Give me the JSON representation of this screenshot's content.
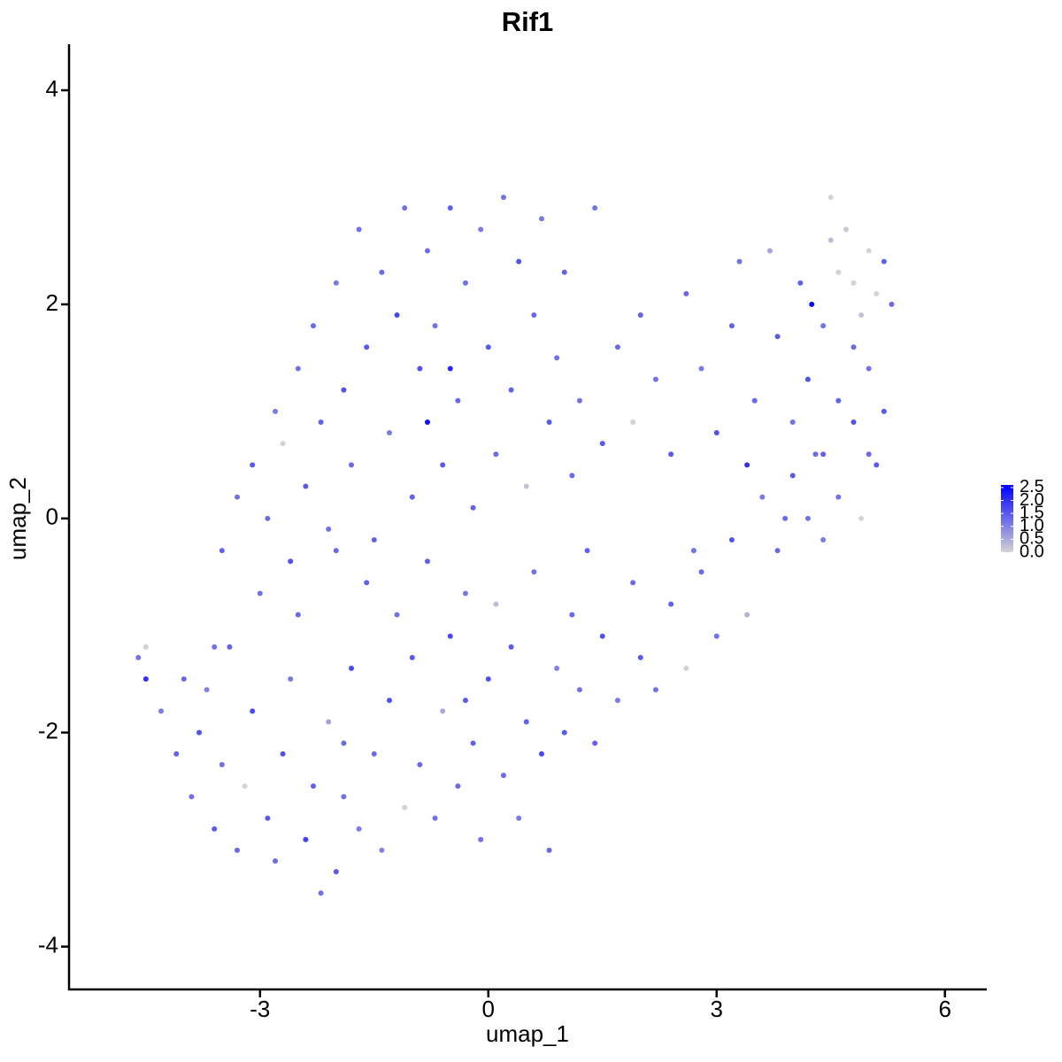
{
  "chart_data": {
    "type": "scatter",
    "title": "Rif1",
    "x_label": "umap_1",
    "y_label": "umap_2",
    "xlim": [
      -5.51,
      6.55
    ],
    "ylim": [
      -4.4,
      4.43
    ],
    "xticks": [
      -3,
      0,
      3,
      6
    ],
    "yticks": [
      -4,
      -2,
      0,
      2,
      4
    ],
    "low_color": "#d3d3d3",
    "high_color": "#0000ff",
    "clim": [
      0,
      2.6
    ],
    "cticks": [
      {
        "value": 0,
        "label": "0.0"
      },
      {
        "value": 0.5,
        "label": "0.5"
      },
      {
        "value": 1,
        "label": "1.0"
      },
      {
        "value": 1.5,
        "label": "1.5"
      },
      {
        "value": 2,
        "label": "2.0"
      },
      {
        "value": 2.5,
        "label": "2.5"
      }
    ],
    "x": [
      -4.6,
      -4.5,
      -4.5,
      -4.3,
      -4.1,
      -4.0,
      -3.9,
      -3.8,
      -3.7,
      -3.6,
      -3.5,
      -3.4,
      -3.3,
      -3.2,
      -3.1,
      -3.0,
      -2.9,
      -2.8,
      -2.7,
      -2.6,
      -2.5,
      -2.4,
      -2.3,
      -2.2,
      -2.1,
      -2.0,
      -2.0,
      -1.9,
      -1.8,
      -1.7,
      -1.6,
      -1.5,
      -1.4,
      -1.3,
      -1.2,
      -1.1,
      -1.0,
      -0.9,
      -0.8,
      -0.7,
      -0.6,
      -0.5,
      -0.4,
      -0.3,
      -0.2,
      -0.1,
      0.0,
      0.1,
      0.2,
      0.3,
      0.4,
      0.5,
      0.6,
      0.7,
      0.8,
      0.9,
      1.0,
      1.1,
      1.2,
      1.4,
      1.5,
      1.7,
      1.9,
      2.0,
      2.2,
      2.4,
      2.6,
      2.8,
      3.0,
      3.2,
      3.4,
      3.6,
      3.8,
      4.0,
      4.2,
      4.4,
      4.6,
      4.8,
      5.0,
      5.2,
      -3.5,
      -3.3,
      -3.1,
      -2.9,
      -2.8,
      -2.7,
      -2.6,
      -2.5,
      -2.4,
      -2.3,
      -2.2,
      -2.1,
      -2.0,
      -1.9,
      -1.8,
      -1.7,
      -1.6,
      -1.5,
      -1.4,
      -1.3,
      -1.2,
      -1.1,
      -1.0,
      -0.9,
      -0.8,
      -0.8,
      -0.7,
      -0.6,
      -0.5,
      -0.5,
      -0.4,
      -0.3,
      -0.2,
      -0.1,
      0.0,
      0.1,
      0.2,
      0.3,
      0.4,
      0.5,
      0.6,
      0.7,
      0.8,
      0.9,
      1.0,
      1.1,
      1.2,
      1.4,
      1.5,
      1.7,
      1.9,
      2.0,
      2.2,
      2.4,
      2.6,
      2.8,
      3.0,
      3.2,
      3.3,
      3.4,
      3.5,
      3.7,
      3.8,
      4.0,
      4.1,
      4.2,
      4.25,
      4.3,
      4.4,
      4.5,
      4.5,
      4.6,
      4.6,
      4.7,
      4.8,
      4.8,
      4.9,
      5.0,
      5.0,
      5.1,
      5.2,
      5.3,
      5.1,
      4.9,
      4.4,
      3.9,
      2.7,
      1.3,
      -0.3,
      -1.9,
      -3.6
    ],
    "y": [
      -1.3,
      -1.2,
      -1.5,
      -1.8,
      -2.2,
      -1.5,
      -2.6,
      -2.0,
      -1.6,
      -2.9,
      -2.3,
      -1.2,
      -3.1,
      -2.5,
      -1.8,
      -0.7,
      -2.8,
      -3.2,
      -2.2,
      -1.5,
      -0.9,
      -3.0,
      -2.5,
      -3.5,
      -1.9,
      -3.3,
      -0.3,
      -2.6,
      -1.4,
      -2.9,
      -0.6,
      -2.2,
      -3.1,
      -1.7,
      -0.9,
      -2.7,
      -1.3,
      -2.3,
      -0.4,
      -2.8,
      -1.8,
      -1.1,
      -2.5,
      -0.7,
      -2.1,
      -3.0,
      -1.5,
      -0.8,
      -2.4,
      -1.2,
      -2.8,
      -1.9,
      -0.5,
      -2.2,
      -3.1,
      -1.4,
      -2.0,
      -0.9,
      -1.6,
      -2.1,
      -1.1,
      -1.7,
      -0.6,
      -1.3,
      -1.6,
      -0.8,
      -1.4,
      -0.5,
      -1.1,
      -0.2,
      -0.9,
      0.2,
      -0.3,
      0.4,
      0.0,
      0.6,
      0.2,
      0.9,
      0.6,
      1.0,
      -0.3,
      0.2,
      0.5,
      0.0,
      1.0,
      0.7,
      -0.4,
      1.4,
      0.3,
      1.8,
      0.9,
      -0.1,
      2.2,
      1.2,
      0.5,
      2.7,
      1.6,
      -0.2,
      2.3,
      0.8,
      1.9,
      2.9,
      0.2,
      1.4,
      2.5,
      0.9,
      1.8,
      0.5,
      2.9,
      1.4,
      1.1,
      2.2,
      0.1,
      2.7,
      1.6,
      0.6,
      3.0,
      1.2,
      2.4,
      0.3,
      1.9,
      2.8,
      0.9,
      1.5,
      2.3,
      0.4,
      1.1,
      2.9,
      0.7,
      1.6,
      0.9,
      1.9,
      1.3,
      0.6,
      2.1,
      1.4,
      0.8,
      1.8,
      2.4,
      0.5,
      1.1,
      2.5,
      1.7,
      0.9,
      2.2,
      1.3,
      2.0,
      0.6,
      1.8,
      2.6,
      3.0,
      1.1,
      2.3,
      2.7,
      1.6,
      2.2,
      1.9,
      2.5,
      1.4,
      2.1,
      2.4,
      2.0,
      0.5,
      0.0,
      -0.2,
      0.0,
      -0.3,
      -0.3,
      -1.7,
      -2.1,
      -1.2
    ],
    "expression": [
      1.2,
      0,
      2.0,
      1.1,
      1.4,
      1.3,
      1.2,
      1.6,
      1.0,
      1.5,
      1.2,
      1.4,
      1.3,
      0,
      1.7,
      1.2,
      1.5,
      1.3,
      1.6,
      1.1,
      1.3,
      1.8,
      1.4,
      1.2,
      0.6,
      1.5,
      1.3,
      1.2,
      1.7,
      1.1,
      1.4,
      1.3,
      1.0,
      1.6,
      1.2,
      0,
      1.5,
      1.3,
      1.4,
      1.2,
      0.5,
      1.7,
      1.3,
      1.1,
      1.4,
      1.2,
      1.6,
      0.3,
      1.3,
      1.5,
      1.1,
      1.4,
      1.2,
      1.7,
      1.3,
      1.0,
      1.5,
      1.3,
      1.2,
      1.4,
      1.6,
      1.1,
      1.3,
      1.5,
      1.2,
      1.4,
      0,
      1.3,
      1.2,
      1.6,
      0.4,
      1.1,
      1.3,
      1.5,
      1.2,
      1.4,
      1.2,
      1.6,
      1.3,
      1.5,
      1.4,
      1.2,
      1.5,
      1.3,
      1.1,
      0,
      1.6,
      1.2,
      1.5,
      1.3,
      1.4,
      1.2,
      1.1,
      1.6,
      1.3,
      1.2,
      1.5,
      1.4,
      1.3,
      1.1,
      1.7,
      1.2,
      1.4,
      1.6,
      1.3,
      2.4,
      1.2,
      1.5,
      1.4,
      2.1,
      1.3,
      1.2,
      1.4,
      1.1,
      1.5,
      1.3,
      1.2,
      1.4,
      1.6,
      0.2,
      1.3,
      1.1,
      1.5,
      1.2,
      1.4,
      1.3,
      1.2,
      1.2,
      1.5,
      1.3,
      0,
      1.4,
      1.2,
      1.5,
      1.3,
      1.1,
      1.6,
      1.4,
      1.2,
      2.0,
      1.3,
      0.6,
      1.5,
      1.2,
      1.4,
      1.6,
      2.5,
      1.3,
      1.2,
      0.3,
      0,
      1.4,
      0,
      0.1,
      1.3,
      0,
      0.2,
      0,
      1.2,
      0,
      1.4,
      1.3,
      1.5,
      0,
      1.1,
      1.3,
      1.2,
      1.4,
      1.5,
      1.3,
      1.2
    ]
  }
}
